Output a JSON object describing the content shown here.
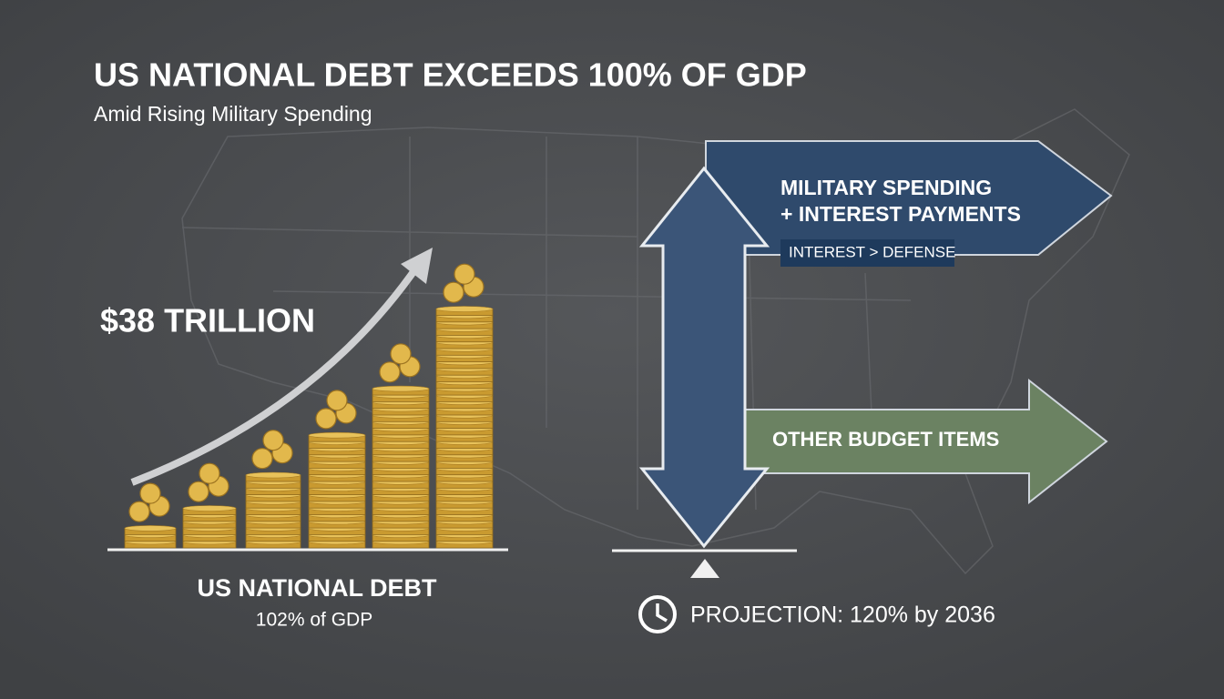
{
  "header": {
    "title": "US NATIONAL DEBT EXCEEDS 100% OF GDP",
    "subtitle": "Amid Rising Military Spending"
  },
  "debt": {
    "amount": "$38 TRILLION",
    "label": "US NATIONAL DEBT",
    "ratio": "102% of GDP"
  },
  "budget": {
    "upper_lines": [
      "MILITARY SPENDING",
      "+ INTEREST PAYMENTS"
    ],
    "badge": "INTEREST > DEFENSE",
    "lower": "OTHER BUDGET ITEMS"
  },
  "projection": "PROJECTION: 120% by 2036"
}
